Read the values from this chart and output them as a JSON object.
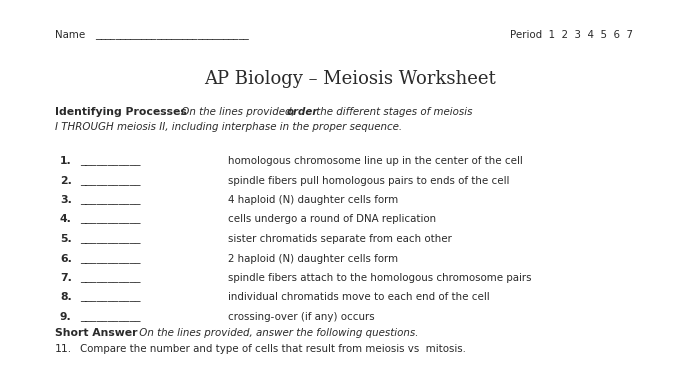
{
  "bg_color": "#ffffff",
  "title": "AP Biology – Meiosis Worksheet",
  "period_label": "Period  1  2  3  4  5  6  7",
  "items": [
    {
      "num": "1.",
      "text": "homologous chromosome line up in the center of the cell"
    },
    {
      "num": "2.",
      "text": "spindle fibers pull homologous pairs to ends of the cell"
    },
    {
      "num": "3.",
      "text": "4 haploid (N) daughter cells form"
    },
    {
      "num": "4.",
      "text": "cells undergo a round of DNA replication"
    },
    {
      "num": "5.",
      "text": "sister chromatids separate from each other"
    },
    {
      "num": "6.",
      "text": "2 haploid (N) daughter cells form"
    },
    {
      "num": "7.",
      "text": "spindle fibers attach to the homologous chromosome pairs"
    },
    {
      "num": "8.",
      "text": "individual chromatids move to each end of the cell"
    },
    {
      "num": "9.",
      "text": "crossing-over (if any) occurs"
    }
  ],
  "q11_text": "Compare the number and type of cells that result from meiosis vs  mitosis.",
  "text_color": "#2a2a2a",
  "title_fs": 13,
  "body_fs": 7.8,
  "small_fs": 7.4
}
